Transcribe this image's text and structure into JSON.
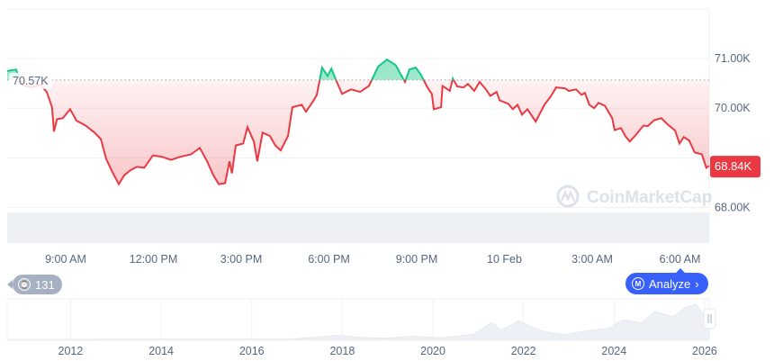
{
  "chart_data": {
    "type": "line",
    "baseline_label": "70.57K",
    "baseline_value": 70.57,
    "current_price_label": "68.84K",
    "ylim": [
      67.9,
      72.0
    ],
    "y_ticks": [
      {
        "value": 71,
        "label": "71.00K"
      },
      {
        "value": 70,
        "label": "70.00K"
      },
      {
        "value": 68,
        "label": "68.00K"
      }
    ],
    "x_range": [
      "2024-02-09T07:00",
      "2024-02-10T07:00"
    ],
    "x_ticks": [
      {
        "t": "2024-02-09T09:00",
        "label": "9:00 AM"
      },
      {
        "t": "2024-02-09T12:00",
        "label": "12:00 PM"
      },
      {
        "t": "2024-02-09T15:00",
        "label": "3:00 PM"
      },
      {
        "t": "2024-02-09T18:00",
        "label": "6:00 PM"
      },
      {
        "t": "2024-02-09T21:00",
        "label": "9:00 PM"
      },
      {
        "t": "2024-02-10T00:00",
        "label": "10 Feb"
      },
      {
        "t": "2024-02-10T03:00",
        "label": "3:00 AM"
      },
      {
        "t": "2024-02-10T06:00",
        "label": "6:00 AM"
      }
    ],
    "grid": true,
    "colors": {
      "up": "#16c784",
      "down": "#ea3943",
      "accent": "#3861fb",
      "grid": "#eff2f5",
      "axis_text": "#58667e"
    },
    "points": [
      [
        "2024-02-09T07:00",
        70.75
      ],
      [
        "2024-02-09T07:18",
        70.78
      ],
      [
        "2024-02-09T07:31",
        70.47
      ],
      [
        "2024-02-09T07:50",
        70.42
      ],
      [
        "2024-02-09T08:08",
        70.47
      ],
      [
        "2024-02-09T08:21",
        70.33
      ],
      [
        "2024-02-09T08:32",
        70.02
      ],
      [
        "2024-02-09T08:36",
        69.53
      ],
      [
        "2024-02-09T08:42",
        69.78
      ],
      [
        "2024-02-09T08:54",
        69.8
      ],
      [
        "2024-02-09T09:09",
        69.98
      ],
      [
        "2024-02-09T09:22",
        69.75
      ],
      [
        "2024-02-09T09:41",
        69.65
      ],
      [
        "2024-02-09T09:59",
        69.51
      ],
      [
        "2024-02-09T10:12",
        69.38
      ],
      [
        "2024-02-09T10:23",
        68.98
      ],
      [
        "2024-02-09T10:36",
        68.71
      ],
      [
        "2024-02-09T10:49",
        68.47
      ],
      [
        "2024-02-09T11:00",
        68.65
      ],
      [
        "2024-02-09T11:13",
        68.75
      ],
      [
        "2024-02-09T11:26",
        68.82
      ],
      [
        "2024-02-09T11:41",
        68.8
      ],
      [
        "2024-02-09T11:59",
        69.05
      ],
      [
        "2024-02-09T12:18",
        69.02
      ],
      [
        "2024-02-09T12:36",
        68.96
      ],
      [
        "2024-02-09T12:54",
        69.02
      ],
      [
        "2024-02-09T13:17",
        69.07
      ],
      [
        "2024-02-09T13:35",
        69.2
      ],
      [
        "2024-02-09T13:50",
        68.93
      ],
      [
        "2024-02-09T14:03",
        68.65
      ],
      [
        "2024-02-09T14:14",
        68.47
      ],
      [
        "2024-02-09T14:27",
        68.49
      ],
      [
        "2024-02-09T14:36",
        68.93
      ],
      [
        "2024-02-09T14:41",
        68.69
      ],
      [
        "2024-02-09T14:49",
        69.25
      ],
      [
        "2024-02-09T15:04",
        69.29
      ],
      [
        "2024-02-09T15:13",
        69.62
      ],
      [
        "2024-02-09T15:26",
        69.33
      ],
      [
        "2024-02-09T15:33",
        68.93
      ],
      [
        "2024-02-09T15:44",
        69.51
      ],
      [
        "2024-02-09T15:59",
        69.44
      ],
      [
        "2024-02-09T16:10",
        69.25
      ],
      [
        "2024-02-09T16:21",
        69.15
      ],
      [
        "2024-02-09T16:36",
        69.44
      ],
      [
        "2024-02-09T16:45",
        70.02
      ],
      [
        "2024-02-09T17:04",
        70.07
      ],
      [
        "2024-02-09T17:13",
        69.93
      ],
      [
        "2024-02-09T17:28",
        70.15
      ],
      [
        "2024-02-09T17:35",
        70.27
      ],
      [
        "2024-02-09T17:46",
        70.82
      ],
      [
        "2024-02-09T17:57",
        70.65
      ],
      [
        "2024-02-09T18:05",
        70.8
      ],
      [
        "2024-02-09T18:16",
        70.53
      ],
      [
        "2024-02-09T18:27",
        70.29
      ],
      [
        "2024-02-09T18:45",
        70.38
      ],
      [
        "2024-02-09T19:04",
        70.33
      ],
      [
        "2024-02-09T19:22",
        70.45
      ],
      [
        "2024-02-09T19:41",
        70.84
      ],
      [
        "2024-02-09T19:59",
        70.98
      ],
      [
        "2024-02-09T20:17",
        70.87
      ],
      [
        "2024-02-09T20:29",
        70.65
      ],
      [
        "2024-02-09T20:36",
        70.53
      ],
      [
        "2024-02-09T20:45",
        70.78
      ],
      [
        "2024-02-09T20:58",
        70.82
      ],
      [
        "2024-02-09T21:09",
        70.67
      ],
      [
        "2024-02-09T21:22",
        70.42
      ],
      [
        "2024-02-09T21:31",
        70.29
      ],
      [
        "2024-02-09T21:35",
        69.98
      ],
      [
        "2024-02-09T21:50",
        70.02
      ],
      [
        "2024-02-09T21:53",
        70.45
      ],
      [
        "2024-02-09T22:08",
        70.35
      ],
      [
        "2024-02-09T22:14",
        70.6
      ],
      [
        "2024-02-09T22:23",
        70.44
      ],
      [
        "2024-02-09T22:36",
        70.42
      ],
      [
        "2024-02-09T22:45",
        70.49
      ],
      [
        "2024-02-09T22:58",
        70.35
      ],
      [
        "2024-02-09T23:09",
        70.53
      ],
      [
        "2024-02-09T23:22",
        70.38
      ],
      [
        "2024-02-09T23:31",
        70.25
      ],
      [
        "2024-02-09T23:44",
        70.33
      ],
      [
        "2024-02-09T23:50",
        70.16
      ],
      [
        "2024-02-10T00:08",
        70.09
      ],
      [
        "2024-02-10T00:17",
        69.98
      ],
      [
        "2024-02-10T00:27",
        70.07
      ],
      [
        "2024-02-10T00:36",
        69.87
      ],
      [
        "2024-02-10T00:47",
        69.98
      ],
      [
        "2024-02-10T01:04",
        69.73
      ],
      [
        "2024-02-10T01:22",
        70.07
      ],
      [
        "2024-02-10T01:35",
        70.24
      ],
      [
        "2024-02-10T01:46",
        70.42
      ],
      [
        "2024-02-10T02:05",
        70.4
      ],
      [
        "2024-02-10T02:12",
        70.35
      ],
      [
        "2024-02-10T02:27",
        70.38
      ],
      [
        "2024-02-10T02:38",
        70.27
      ],
      [
        "2024-02-10T02:45",
        70.31
      ],
      [
        "2024-02-10T02:54",
        70.07
      ],
      [
        "2024-02-10T03:04",
        70.0
      ],
      [
        "2024-02-10T03:13",
        70.11
      ],
      [
        "2024-02-10T03:26",
        70.05
      ],
      [
        "2024-02-10T03:41",
        69.8
      ],
      [
        "2024-02-10T03:46",
        69.56
      ],
      [
        "2024-02-10T03:59",
        69.6
      ],
      [
        "2024-02-10T04:08",
        69.44
      ],
      [
        "2024-02-10T04:17",
        69.33
      ],
      [
        "2024-02-10T04:30",
        69.47
      ],
      [
        "2024-02-10T04:45",
        69.65
      ],
      [
        "2024-02-10T04:54",
        69.64
      ],
      [
        "2024-02-10T05:07",
        69.76
      ],
      [
        "2024-02-10T05:22",
        69.8
      ],
      [
        "2024-02-10T05:35",
        69.67
      ],
      [
        "2024-02-10T05:50",
        69.55
      ],
      [
        "2024-02-10T05:59",
        69.29
      ],
      [
        "2024-02-10T06:08",
        69.42
      ],
      [
        "2024-02-10T06:19",
        69.35
      ],
      [
        "2024-02-10T06:30",
        69.11
      ],
      [
        "2024-02-10T06:45",
        69.07
      ],
      [
        "2024-02-10T06:54",
        68.8
      ],
      [
        "2024-02-10T07:00",
        68.84
      ]
    ],
    "overview": {
      "x_ticks": [
        "2012",
        "2014",
        "2016",
        "2018",
        "2020",
        "2022",
        "2024",
        "2026"
      ],
      "x_range": [
        2010.6,
        2026.1
      ],
      "points": [
        [
          2010.6,
          0
        ],
        [
          2013.9,
          1
        ],
        [
          2016.9,
          1
        ],
        [
          2017.9,
          15
        ],
        [
          2018.3,
          8
        ],
        [
          2019.0,
          4
        ],
        [
          2019.5,
          11
        ],
        [
          2020.2,
          6
        ],
        [
          2020.9,
          18
        ],
        [
          2021.3,
          60
        ],
        [
          2021.5,
          33
        ],
        [
          2021.9,
          65
        ],
        [
          2022.4,
          30
        ],
        [
          2022.9,
          17
        ],
        [
          2023.3,
          28
        ],
        [
          2023.9,
          40
        ],
        [
          2024.2,
          70
        ],
        [
          2024.6,
          58
        ],
        [
          2024.9,
          98
        ],
        [
          2025.3,
          80
        ],
        [
          2025.6,
          115
        ],
        [
          2025.8,
          124
        ],
        [
          2025.95,
          95
        ],
        [
          2026.1,
          70
        ]
      ]
    },
    "watermark": "CoinMarketCap"
  },
  "controls": {
    "history_count": "131",
    "analyze_label": "Analyze"
  }
}
